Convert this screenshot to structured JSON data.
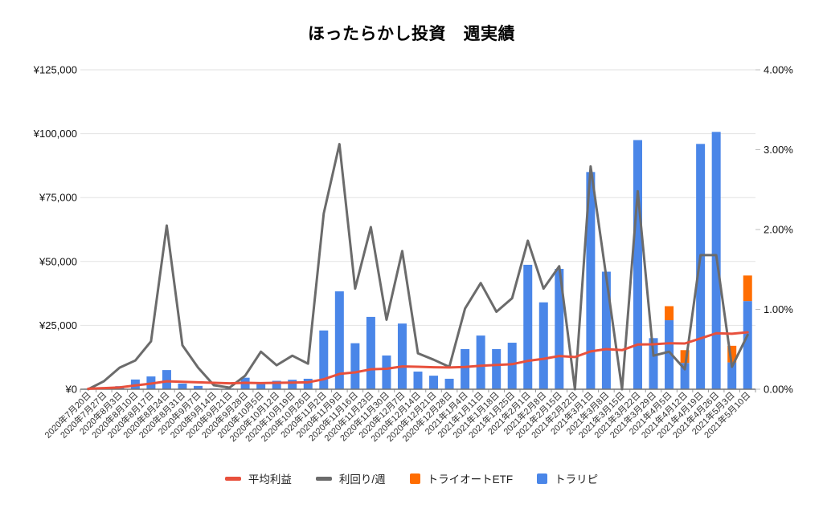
{
  "title": "ほったらかし投資　週実績",
  "legend": [
    {
      "id": "avg-profit",
      "label": "平均利益",
      "shape": "dash",
      "color": "#e8503c"
    },
    {
      "id": "weekly-yield",
      "label": "利回り/週",
      "shape": "dash",
      "color": "#6b6b6b"
    },
    {
      "id": "triauto-etf",
      "label": "トライオートETF",
      "shape": "square",
      "color": "#ff6d01"
    },
    {
      "id": "traripi",
      "label": "トラリピ",
      "shape": "square",
      "color": "#4a86e8"
    }
  ],
  "chart_data": {
    "type": "combo",
    "categories": [
      "2020年7月20日",
      "2020年7月27日",
      "2020年8月3日",
      "2020年8月10日",
      "2020年8月17日",
      "2020年8月24日",
      "2020年8月31日",
      "2020年9月7日",
      "2020年9月14日",
      "2020年9月21日",
      "2020年9月28日",
      "2020年10月5日",
      "2020年10月12日",
      "2020年10月19日",
      "2020年10月26日",
      "2020年11月2日",
      "2020年11月9日",
      "2020年11月16日",
      "2020年11月23日",
      "2020年11月30日",
      "2020年12月7日",
      "2020年12月14日",
      "2020年12月21日",
      "2020年12月28日",
      "2021年1月4日",
      "2021年1月11日",
      "2021年1月18日",
      "2021年1月25日",
      "2021年2月1日",
      "2021年2月8日",
      "2021年2月15日",
      "2021年2月22日",
      "2021年3月1日",
      "2021年3月8日",
      "2021年3月15日",
      "2021年3月22日",
      "2021年3月29日",
      "2021年4月5日",
      "2021年4月12日",
      "2021年4月19日",
      "2021年4月26日",
      "2021年5月3日",
      "2021年5月10日"
    ],
    "series": [
      {
        "id": "avg-profit",
        "name": "平均利益",
        "type": "line",
        "axis": "left",
        "color": "#e8503c",
        "values": [
          200,
          450,
          700,
          1500,
          2200,
          3100,
          2900,
          2700,
          2500,
          2300,
          2500,
          2400,
          2500,
          2600,
          2700,
          3900,
          6000,
          6600,
          7800,
          8000,
          8900,
          8800,
          8600,
          8500,
          8700,
          9200,
          9500,
          9800,
          11100,
          11900,
          13000,
          12600,
          14800,
          15700,
          15300,
          17500,
          17600,
          18000,
          17900,
          19900,
          21900,
          21700,
          22300
        ]
      },
      {
        "id": "weekly-yield",
        "name": "利回り/週",
        "type": "line",
        "axis": "right",
        "color": "#6b6b6b",
        "values": [
          0,
          0.1,
          0.27,
          0.36,
          0.6,
          2.05,
          0.55,
          0.27,
          0.05,
          0.02,
          0.17,
          0.47,
          0.3,
          0.42,
          0.32,
          2.2,
          3.07,
          1.26,
          2.03,
          0.87,
          1.73,
          0.45,
          0.37,
          0.28,
          1.01,
          1.33,
          0.97,
          1.14,
          1.86,
          1.26,
          1.54,
          0,
          2.79,
          1.4,
          0,
          2.48,
          0.42,
          0.47,
          0.25,
          1.68,
          1.68,
          0.28,
          0.68
        ]
      },
      {
        "id": "triauto-etf",
        "name": "トライオートETF",
        "type": "bar",
        "axis": "left",
        "color": "#ff6d01",
        "values": [
          0,
          0,
          0,
          0,
          0,
          0,
          0,
          0,
          0,
          0,
          0,
          0,
          0,
          0,
          0,
          0,
          0,
          0,
          0,
          0,
          0,
          0,
          0,
          0,
          0,
          0,
          0,
          0,
          0,
          0,
          0,
          0,
          0,
          0,
          0,
          0,
          0,
          5500,
          5000,
          0,
          0,
          6500,
          10000
        ]
      },
      {
        "id": "traripi",
        "name": "トラリピ",
        "type": "bar",
        "axis": "left",
        "color": "#4a86e8",
        "values": [
          200,
          700,
          1200,
          3800,
          5000,
          7500,
          2200,
          1300,
          300,
          300,
          4500,
          2000,
          3300,
          3700,
          4100,
          23000,
          38300,
          18000,
          28300,
          13200,
          25700,
          6900,
          5300,
          4100,
          15700,
          21000,
          15700,
          18200,
          48700,
          34000,
          47100,
          0,
          85000,
          46000,
          0,
          97500,
          20000,
          27000,
          10300,
          96000,
          100700,
          10500,
          34500
        ]
      }
    ],
    "left_axis": {
      "ticks": [
        "¥0",
        "¥25,000",
        "¥50,000",
        "¥75,000",
        "¥100,000",
        "¥125,000"
      ],
      "values": [
        0,
        25000,
        50000,
        75000,
        100000,
        125000
      ],
      "min": 0,
      "max": 125000
    },
    "right_axis": {
      "ticks": [
        "0.00%",
        "1.00%",
        "2.00%",
        "3.00%",
        "4.00%"
      ],
      "values": [
        0,
        1,
        2,
        3,
        4
      ],
      "min": 0,
      "max": 4
    },
    "grid": true,
    "legend_position": "bottom"
  }
}
